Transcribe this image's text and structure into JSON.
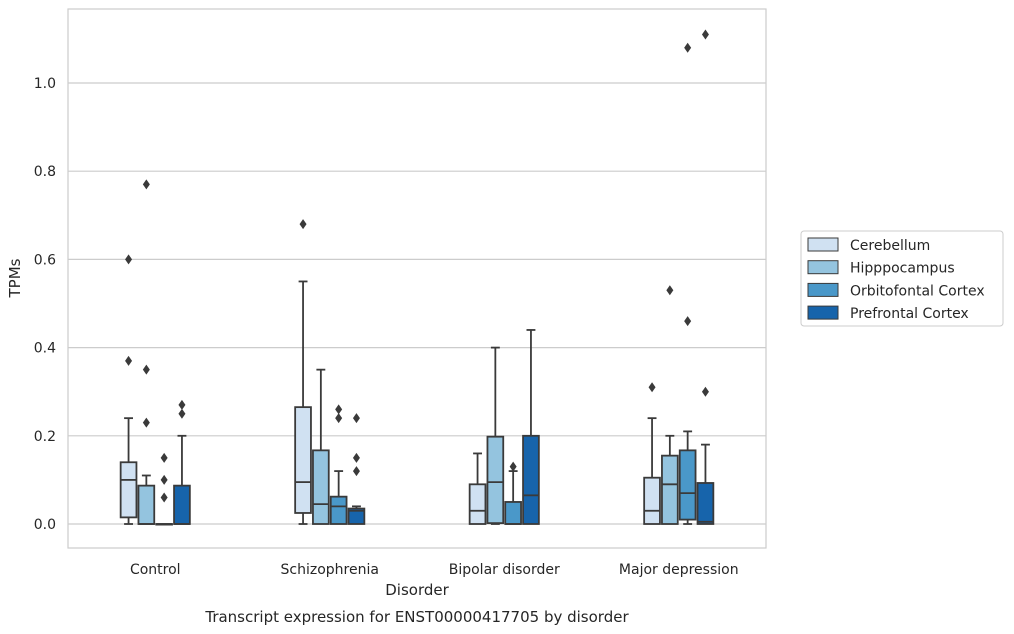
{
  "caption": "Transcript expression for ENST00000417705 by disorder",
  "chart_data": {
    "type": "box",
    "xlabel": "Disorder",
    "ylabel": "TPMs",
    "ylim": [
      -0.055,
      1.17
    ],
    "yticks": [
      0.0,
      0.2,
      0.4,
      0.6,
      0.8,
      1.0
    ],
    "ytick_labels": [
      "0.0",
      "0.2",
      "0.4",
      "0.6",
      "0.8",
      "1.0"
    ],
    "grid": "horizontal",
    "legend_position": "right",
    "categories": [
      "Control",
      "Schizophrenia",
      "Bipolar disorder",
      "Major depression"
    ],
    "series": [
      {
        "name": "Cerebellum",
        "color": "#d0e1f2",
        "boxes": [
          {
            "q1": 0.015,
            "median": 0.1,
            "q3": 0.14,
            "whisker_low": 0.0,
            "whisker_high": 0.24,
            "outliers": [
              0.37,
              0.6
            ]
          },
          {
            "q1": 0.025,
            "median": 0.095,
            "q3": 0.265,
            "whisker_low": 0.0,
            "whisker_high": 0.55,
            "outliers": [
              0.68
            ]
          },
          {
            "q1": 0.0,
            "median": 0.03,
            "q3": 0.09,
            "whisker_low": 0.0,
            "whisker_high": 0.16,
            "outliers": []
          },
          {
            "q1": 0.0,
            "median": 0.03,
            "q3": 0.105,
            "whisker_low": 0.0,
            "whisker_high": 0.24,
            "outliers": [
              0.31
            ]
          }
        ]
      },
      {
        "name": "Hipppocampus",
        "color": "#94c4df",
        "boxes": [
          {
            "q1": 0.0,
            "median": 0.0,
            "q3": 0.087,
            "whisker_low": 0.0,
            "whisker_high": 0.11,
            "outliers": [
              0.23,
              0.35,
              0.77
            ]
          },
          {
            "q1": 0.0,
            "median": 0.045,
            "q3": 0.167,
            "whisker_low": 0.0,
            "whisker_high": 0.35,
            "outliers": []
          },
          {
            "q1": 0.002,
            "median": 0.095,
            "q3": 0.198,
            "whisker_low": 0.0,
            "whisker_high": 0.4,
            "outliers": []
          },
          {
            "q1": 0.0,
            "median": 0.09,
            "q3": 0.155,
            "whisker_low": 0.0,
            "whisker_high": 0.2,
            "outliers": [
              0.53
            ]
          }
        ]
      },
      {
        "name": "Orbitofontal Cortex",
        "color": "#4a98c9",
        "boxes": [
          {
            "q1": 0.0,
            "median": 0.0,
            "q3": 0.0,
            "whisker_low": 0.0,
            "whisker_high": 0.0,
            "outliers": [
              0.06,
              0.1,
              0.15
            ]
          },
          {
            "q1": 0.0,
            "median": 0.04,
            "q3": 0.062,
            "whisker_low": 0.0,
            "whisker_high": 0.12,
            "outliers": [
              0.24,
              0.26
            ]
          },
          {
            "q1": 0.0,
            "median": 0.0,
            "q3": 0.05,
            "whisker_low": 0.0,
            "whisker_high": 0.12,
            "outliers": [
              0.13
            ]
          },
          {
            "q1": 0.01,
            "median": 0.07,
            "q3": 0.167,
            "whisker_low": 0.0,
            "whisker_high": 0.21,
            "outliers": [
              0.46,
              1.08
            ]
          }
        ]
      },
      {
        "name": "Prefrontal Cortex",
        "color": "#1764ab",
        "boxes": [
          {
            "q1": 0.0,
            "median": 0.0,
            "q3": 0.087,
            "whisker_low": 0.0,
            "whisker_high": 0.2,
            "outliers": [
              0.25,
              0.27
            ]
          },
          {
            "q1": 0.0,
            "median": 0.03,
            "q3": 0.035,
            "whisker_low": 0.0,
            "whisker_high": 0.04,
            "outliers": [
              0.12,
              0.15,
              0.24
            ]
          },
          {
            "q1": 0.0,
            "median": 0.065,
            "q3": 0.2,
            "whisker_low": 0.0,
            "whisker_high": 0.44,
            "outliers": []
          },
          {
            "q1": 0.0,
            "median": 0.005,
            "q3": 0.093,
            "whisker_low": 0.0,
            "whisker_high": 0.18,
            "outliers": [
              0.3,
              1.11
            ]
          }
        ]
      }
    ]
  }
}
